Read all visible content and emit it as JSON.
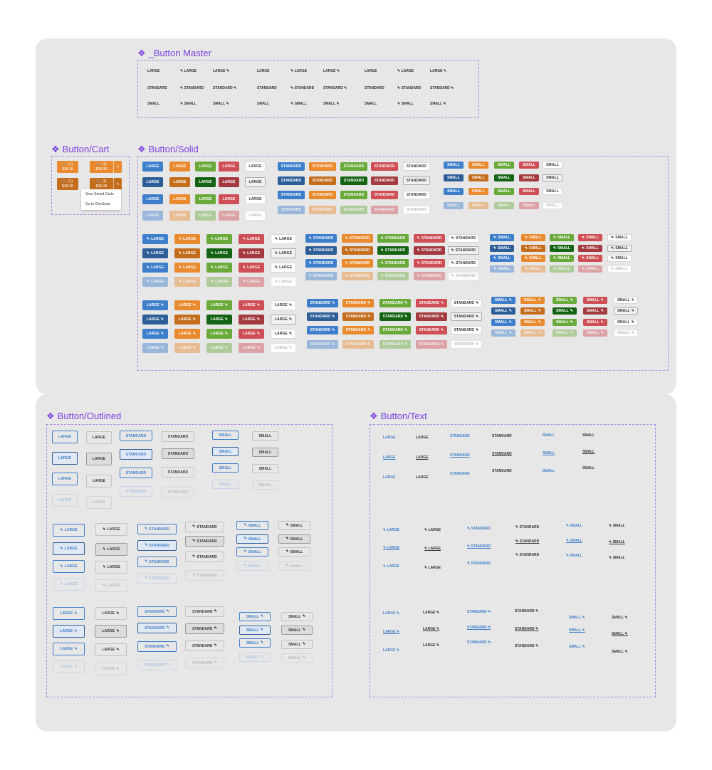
{
  "sections": {
    "master": "_Button Master",
    "cart": "Button/Cart",
    "solid": "Button/Solid",
    "outlined": "Button/Outlined",
    "text": "Button/Text"
  },
  "sizes": [
    "LARGE",
    "STANDARD",
    "SMALL"
  ],
  "icon_names": {
    "edit": "edit-icon",
    "cart": "cart-icon",
    "chevron": "chevron-icon"
  },
  "colors": {
    "blue": "#3d7fcb",
    "orange": "#ea8a2e",
    "green": "#6aaa3b",
    "red": "#cf4f56",
    "blue_dark": "#2d5e98",
    "orange_dark": "#c46d1d",
    "green_dark": "#146414",
    "red_dark": "#a33a40",
    "accent_title": "#7b3fe0"
  },
  "cart": {
    "count": "(1)",
    "price": "$38.38",
    "menu": [
      "View Saved Carts",
      "Go to Checkout"
    ]
  }
}
